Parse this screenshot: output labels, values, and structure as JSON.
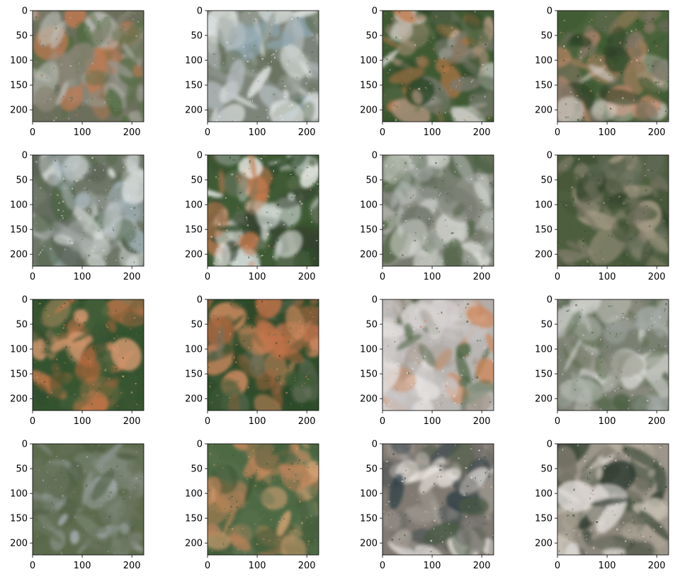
{
  "figure": {
    "rows": 4,
    "cols": 4,
    "background": "#ffffff",
    "axis_color": "#000000"
  },
  "chart_data": [
    {
      "type": "image",
      "panel": 1,
      "xlim": [
        0,
        224
      ],
      "ylim": [
        224,
        0
      ],
      "xticks": [
        0,
        100,
        200
      ],
      "yticks": [
        0,
        50,
        100,
        150,
        200
      ],
      "xlabel": "",
      "ylabel": "",
      "title": "",
      "palette": {
        "base": "#6c6f5c",
        "colors": [
          "#4b6a3c",
          "#8a8676",
          "#bfc1bb",
          "#5b6f4a",
          "#c07a52",
          "#9a9a90"
        ]
      }
    },
    {
      "type": "image",
      "panel": 2,
      "xlim": [
        0,
        224
      ],
      "ylim": [
        224,
        0
      ],
      "xticks": [
        0,
        100,
        200
      ],
      "yticks": [
        0,
        50,
        100,
        150,
        200
      ],
      "xlabel": "",
      "ylabel": "",
      "title": "",
      "palette": {
        "base": "#7d8479",
        "colors": [
          "#d7dcd8",
          "#9aa29a",
          "#5e6c52",
          "#b9c2c6",
          "#8da6b0",
          "#e8ebea"
        ]
      }
    },
    {
      "type": "image",
      "panel": 3,
      "xlim": [
        0,
        224
      ],
      "ylim": [
        224,
        0
      ],
      "xticks": [
        0,
        100,
        200
      ],
      "yticks": [
        0,
        50,
        100,
        150,
        200
      ],
      "xlabel": "",
      "ylabel": "",
      "title": "",
      "palette": {
        "base": "#3f5a33",
        "colors": [
          "#2f4a2a",
          "#c47a4a",
          "#cfcfc9",
          "#5a6b48",
          "#b89a84",
          "#7b7c70"
        ]
      }
    },
    {
      "type": "image",
      "panel": 4,
      "xlim": [
        0,
        224
      ],
      "ylim": [
        224,
        0
      ],
      "xticks": [
        0,
        100,
        200
      ],
      "yticks": [
        0,
        50,
        100,
        150,
        200
      ],
      "xlabel": "",
      "ylabel": "",
      "title": "",
      "palette": {
        "base": "#4a633b",
        "colors": [
          "#3d5a31",
          "#c98a6a",
          "#d6cfc8",
          "#6c6a5a",
          "#8e7b6a",
          "#2f4328"
        ]
      }
    },
    {
      "type": "image",
      "panel": 5,
      "xlim": [
        0,
        224
      ],
      "ylim": [
        224,
        0
      ],
      "xticks": [
        0,
        100,
        200
      ],
      "yticks": [
        0,
        50,
        100,
        150,
        200
      ],
      "xlabel": "",
      "ylabel": "",
      "title": "",
      "palette": {
        "base": "#6f7768",
        "colors": [
          "#cfd6d4",
          "#9ea6a2",
          "#4e6446",
          "#a8b8c0",
          "#e3e7e6",
          "#596155"
        ]
      }
    },
    {
      "type": "image",
      "panel": 6,
      "xlim": [
        0,
        224
      ],
      "ylim": [
        224,
        0
      ],
      "xticks": [
        0,
        100,
        200
      ],
      "yticks": [
        0,
        50,
        100,
        150,
        200
      ],
      "xlabel": "",
      "ylabel": "",
      "title": "",
      "palette": {
        "base": "#3f5b35",
        "colors": [
          "#2f4b2a",
          "#c47a4e",
          "#e6e8e4",
          "#c9d3cf",
          "#6d7a62",
          "#35402f"
        ]
      }
    },
    {
      "type": "image",
      "panel": 7,
      "xlim": [
        0,
        224
      ],
      "ylim": [
        224,
        0
      ],
      "xticks": [
        0,
        100,
        200
      ],
      "yticks": [
        0,
        50,
        100,
        150,
        200
      ],
      "xlabel": "",
      "ylabel": "",
      "title": "",
      "palette": {
        "base": "#8a8d82",
        "colors": [
          "#c8ccc6",
          "#6e7468",
          "#4b6040",
          "#aab1ab",
          "#dadcd6",
          "#5c6b55"
        ]
      }
    },
    {
      "type": "image",
      "panel": 8,
      "xlim": [
        0,
        224
      ],
      "ylim": [
        224,
        0
      ],
      "xticks": [
        0,
        100,
        200
      ],
      "yticks": [
        0,
        50,
        100,
        150,
        200
      ],
      "xlabel": "",
      "ylabel": "",
      "title": "",
      "palette": {
        "base": "#4d5e3e",
        "colors": [
          "#3f5233",
          "#8c8472",
          "#a69c86",
          "#5f6a55",
          "#34452c",
          "#7a7565"
        ]
      }
    },
    {
      "type": "image",
      "panel": 9,
      "xlim": [
        0,
        224
      ],
      "ylim": [
        224,
        0
      ],
      "xticks": [
        0,
        100,
        200
      ],
      "yticks": [
        0,
        50,
        100,
        150,
        200
      ],
      "xlabel": "",
      "ylabel": "",
      "title": "",
      "palette": {
        "base": "#34532f",
        "colors": [
          "#2c4a29",
          "#c77a4c",
          "#d59970",
          "#44613a",
          "#b86a3e",
          "#3a5633"
        ]
      }
    },
    {
      "type": "image",
      "panel": 10,
      "xlim": [
        0,
        224
      ],
      "ylim": [
        224,
        0
      ],
      "xticks": [
        0,
        100,
        200
      ],
      "yticks": [
        0,
        50,
        100,
        150,
        200
      ],
      "xlabel": "",
      "ylabel": "",
      "title": "",
      "palette": {
        "base": "#2f4d2b",
        "colors": [
          "#2b4827",
          "#c5744a",
          "#d08a60",
          "#6a7460",
          "#3d5a36",
          "#a4643d"
        ]
      }
    },
    {
      "type": "image",
      "panel": 11,
      "xlim": [
        0,
        224
      ],
      "ylim": [
        224,
        0
      ],
      "xticks": [
        0,
        100,
        200
      ],
      "yticks": [
        0,
        50,
        100,
        150,
        200
      ],
      "xlabel": "",
      "ylabel": "",
      "title": "",
      "palette": {
        "base": "#b9b6b3",
        "colors": [
          "#d8d4d3",
          "#c7c3c2",
          "#3f5a35",
          "#a89c93",
          "#cf8658",
          "#e5e2e0"
        ]
      }
    },
    {
      "type": "image",
      "panel": 12,
      "xlim": [
        0,
        224
      ],
      "ylim": [
        224,
        0
      ],
      "xticks": [
        0,
        100,
        200
      ],
      "yticks": [
        0,
        50,
        100,
        150,
        200
      ],
      "xlabel": "",
      "ylabel": "",
      "title": "",
      "palette": {
        "base": "#7a8072",
        "colors": [
          "#b9bcb4",
          "#5d6e50",
          "#d3d4ce",
          "#8b8b7e",
          "#4a5f40",
          "#a4aaa6"
        ]
      }
    },
    {
      "type": "image",
      "panel": 13,
      "xlim": [
        0,
        224
      ],
      "ylim": [
        224,
        0
      ],
      "xticks": [
        0,
        100,
        200
      ],
      "yticks": [
        0,
        50,
        100,
        150,
        200
      ],
      "xlabel": "",
      "ylabel": "",
      "title": "",
      "palette": {
        "base": "#5d6b4d",
        "colors": [
          "#66735a",
          "#798573",
          "#4f6044",
          "#8b948d",
          "#a6aeb0",
          "#6a7560"
        ]
      }
    },
    {
      "type": "image",
      "panel": 14,
      "xlim": [
        0,
        224
      ],
      "ylim": [
        224,
        0
      ],
      "xticks": [
        0,
        100,
        200
      ],
      "yticks": [
        0,
        50,
        100,
        150,
        200
      ],
      "xlabel": "",
      "ylabel": "",
      "title": "",
      "palette": {
        "base": "#4e6a45",
        "colors": [
          "#c88a5c",
          "#d4a274",
          "#425c3a",
          "#b9825a",
          "#5e7351",
          "#3d5533"
        ]
      }
    },
    {
      "type": "image",
      "panel": 15,
      "xlim": [
        0,
        224
      ],
      "ylim": [
        224,
        0
      ],
      "xticks": [
        0,
        100,
        200
      ],
      "yticks": [
        0,
        50,
        100,
        150,
        200
      ],
      "xlabel": "",
      "ylabel": "",
      "title": "",
      "palette": {
        "base": "#807a72",
        "colors": [
          "#9a948c",
          "#f2ece8",
          "#4a5a45",
          "#6d6b66",
          "#b9b2aa",
          "#2f3f47"
        ]
      }
    },
    {
      "type": "image",
      "panel": 16,
      "xlim": [
        0,
        224
      ],
      "ylim": [
        224,
        0
      ],
      "xticks": [
        0,
        100,
        200
      ],
      "yticks": [
        0,
        50,
        100,
        150,
        200
      ],
      "xlabel": "",
      "ylabel": "",
      "title": "",
      "palette": {
        "base": "#9c958a",
        "colors": [
          "#c3bcb0",
          "#3f4d3c",
          "#2f3c31",
          "#dedad6",
          "#7e7b6e",
          "#b6ad9e"
        ]
      }
    }
  ]
}
